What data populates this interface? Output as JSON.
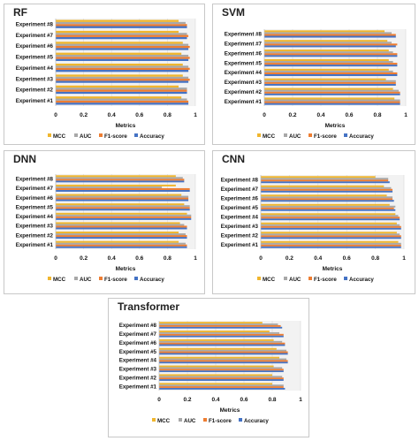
{
  "colors": {
    "MCC": "#f0b62e",
    "AUC": "#a8a8a8",
    "F1-score": "#ee7d31",
    "Accuracy": "#4472c4"
  },
  "chart_data": [
    {
      "type": "bar",
      "orientation": "horizontal",
      "title": "RF",
      "xlabel": "Metrics",
      "xlim": [
        0,
        1
      ],
      "ticks": [
        "0",
        "0.2",
        "0.4",
        "0.6",
        "0.8",
        "1"
      ],
      "legend_position": "bottom",
      "categories": [
        "Experiment #1",
        "Experiment #2",
        "Experiment #3",
        "Experiment #4",
        "Experiment #5",
        "Experiment #6",
        "Experiment #7",
        "Experiment #8"
      ],
      "series": [
        {
          "name": "MCC",
          "values": [
            0.9,
            0.88,
            0.91,
            0.91,
            0.9,
            0.91,
            0.88,
            0.88
          ]
        },
        {
          "name": "AUC",
          "values": [
            0.94,
            0.94,
            0.95,
            0.95,
            0.95,
            0.95,
            0.94,
            0.93
          ]
        },
        {
          "name": "F1-score",
          "values": [
            0.95,
            0.94,
            0.96,
            0.96,
            0.96,
            0.96,
            0.95,
            0.94
          ]
        },
        {
          "name": "Accuracy",
          "values": [
            0.95,
            0.94,
            0.95,
            0.95,
            0.95,
            0.95,
            0.94,
            0.94
          ]
        }
      ]
    },
    {
      "type": "bar",
      "orientation": "horizontal",
      "title": "SVM",
      "xlabel": "Metrics",
      "xlim": [
        0,
        1
      ],
      "ticks": [
        "0",
        "0.2",
        "0.4",
        "0.6",
        "0.8",
        "1"
      ],
      "legend_position": "bottom",
      "categories": [
        "Experiment #1",
        "Experiment #2",
        "Experiment #3",
        "Experiment #4",
        "Experiment #5",
        "Experiment #6",
        "Experiment #7",
        "Experiment #8"
      ],
      "series": [
        {
          "name": "MCC",
          "values": [
            0.92,
            0.91,
            0.86,
            0.88,
            0.88,
            0.88,
            0.87,
            0.85
          ]
        },
        {
          "name": "AUC",
          "values": [
            0.96,
            0.95,
            0.93,
            0.91,
            0.91,
            0.91,
            0.9,
            0.9
          ]
        },
        {
          "name": "F1-score",
          "values": [
            0.96,
            0.96,
            0.93,
            0.94,
            0.94,
            0.94,
            0.94,
            0.93
          ]
        },
        {
          "name": "Accuracy",
          "values": [
            0.96,
            0.96,
            0.93,
            0.94,
            0.94,
            0.94,
            0.93,
            0.93
          ]
        }
      ]
    },
    {
      "type": "bar",
      "orientation": "horizontal",
      "title": "DNN",
      "xlabel": "Metrics",
      "xlim": [
        0,
        1
      ],
      "ticks": [
        "0",
        "0.2",
        "0.4",
        "0.6",
        "0.8",
        "1"
      ],
      "legend_position": "bottom",
      "categories": [
        "Experiment #1",
        "Experiment #2",
        "Experiment #3",
        "Experiment #4",
        "Experiment #5",
        "Experiment #6",
        "Experiment #7",
        "Experiment #8"
      ],
      "series": [
        {
          "name": "MCC",
          "values": [
            0.88,
            0.88,
            0.89,
            0.94,
            0.92,
            0.9,
            0.86,
            0.86
          ]
        },
        {
          "name": "AUC",
          "values": [
            0.93,
            0.93,
            0.92,
            0.97,
            0.96,
            0.95,
            0.76,
            0.91
          ]
        },
        {
          "name": "F1-score",
          "values": [
            0.94,
            0.94,
            0.94,
            0.97,
            0.96,
            0.95,
            0.96,
            0.92
          ]
        },
        {
          "name": "Accuracy",
          "values": [
            0.94,
            0.94,
            0.94,
            0.97,
            0.96,
            0.95,
            0.96,
            0.92
          ]
        }
      ]
    },
    {
      "type": "bar",
      "orientation": "horizontal",
      "title": "CNN",
      "xlabel": "Metrics",
      "xlim": [
        0,
        1
      ],
      "ticks": [
        "0",
        "0.2",
        "0.4",
        "0.6",
        "0.8",
        "1"
      ],
      "legend_position": "bottom",
      "categories": [
        "Experiment #1",
        "Experiment #2",
        "Experiment #3",
        "Experiment #4",
        "Experiment #5",
        "Experiment #6",
        "Experiment #7",
        "Experiment #8"
      ],
      "series": [
        {
          "name": "MCC",
          "values": [
            0.96,
            0.95,
            0.95,
            0.94,
            0.9,
            0.88,
            0.86,
            0.8
          ]
        },
        {
          "name": "AUC",
          "values": [
            0.98,
            0.97,
            0.97,
            0.96,
            0.94,
            0.92,
            0.91,
            0.89
          ]
        },
        {
          "name": "F1-score",
          "values": [
            0.98,
            0.98,
            0.98,
            0.97,
            0.93,
            0.92,
            0.92,
            0.89
          ]
        },
        {
          "name": "Accuracy",
          "values": [
            0.98,
            0.98,
            0.98,
            0.97,
            0.94,
            0.93,
            0.92,
            0.9
          ]
        }
      ]
    },
    {
      "type": "bar",
      "orientation": "horizontal",
      "title": "Transformer",
      "xlabel": "Metrics",
      "xlim": [
        0,
        1
      ],
      "ticks": [
        "0",
        "0.2",
        "0.4",
        "0.6",
        "0.8",
        "1"
      ],
      "legend_position": "bottom",
      "categories": [
        "Experiment #1",
        "Experiment #2",
        "Experiment #3",
        "Experiment #4",
        "Experiment #5",
        "Experiment #6",
        "Experiment #7",
        "Experiment #8"
      ],
      "series": [
        {
          "name": "MCC",
          "values": [
            0.8,
            0.8,
            0.81,
            0.85,
            0.83,
            0.81,
            0.78,
            0.73
          ]
        },
        {
          "name": "AUC",
          "values": [
            0.88,
            0.87,
            0.87,
            0.9,
            0.9,
            0.87,
            0.85,
            0.84
          ]
        },
        {
          "name": "F1-score",
          "values": [
            0.88,
            0.88,
            0.88,
            0.91,
            0.91,
            0.89,
            0.88,
            0.86
          ]
        },
        {
          "name": "Accuracy",
          "values": [
            0.89,
            0.88,
            0.88,
            0.91,
            0.91,
            0.89,
            0.88,
            0.87
          ]
        }
      ]
    }
  ]
}
